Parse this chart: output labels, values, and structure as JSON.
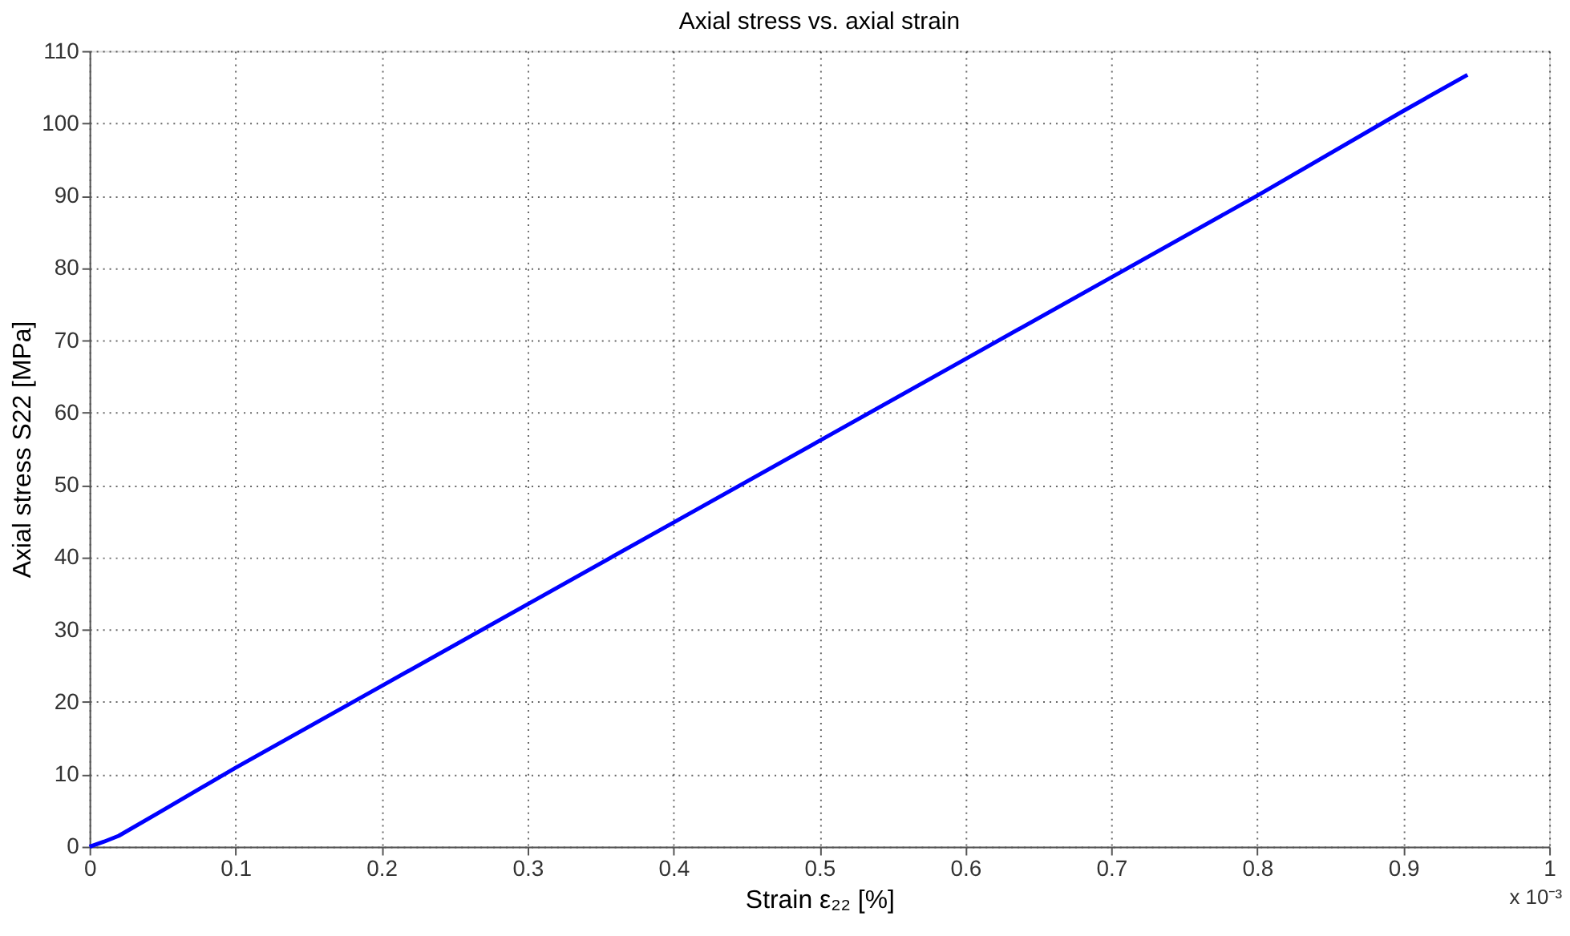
{
  "chart_data": {
    "type": "line",
    "title": "Axial stress vs. axial strain",
    "xlabel": "Strain ε₂₂ [%]",
    "ylabel": "Axial stress S22 [MPa]",
    "annotations": [
      "x 10⁻³"
    ],
    "series": [
      {
        "color": "#0000ff",
        "x": [
          0,
          0.01,
          0.02,
          0.05,
          0.1,
          0.2,
          0.3,
          0.4,
          0.5,
          0.6,
          0.7,
          0.8,
          0.9,
          0.944
        ],
        "values": [
          0,
          0.7,
          1.5,
          5,
          10.9,
          22.2,
          33.5,
          44.8,
          56.1,
          67.4,
          78.7,
          90,
          101.7,
          106.7
        ]
      }
    ],
    "xlim": [
      0,
      1
    ],
    "xticks": [
      0,
      0.1,
      0.2,
      0.3,
      0.4,
      0.5,
      0.6,
      0.7,
      0.8,
      0.9,
      1
    ],
    "ylim": [
      0,
      110
    ],
    "yticks": [
      0,
      10,
      20,
      30,
      40,
      50,
      60,
      70,
      80,
      90,
      100,
      110
    ],
    "grid": true,
    "line_style": "solid",
    "marker": "none"
  }
}
